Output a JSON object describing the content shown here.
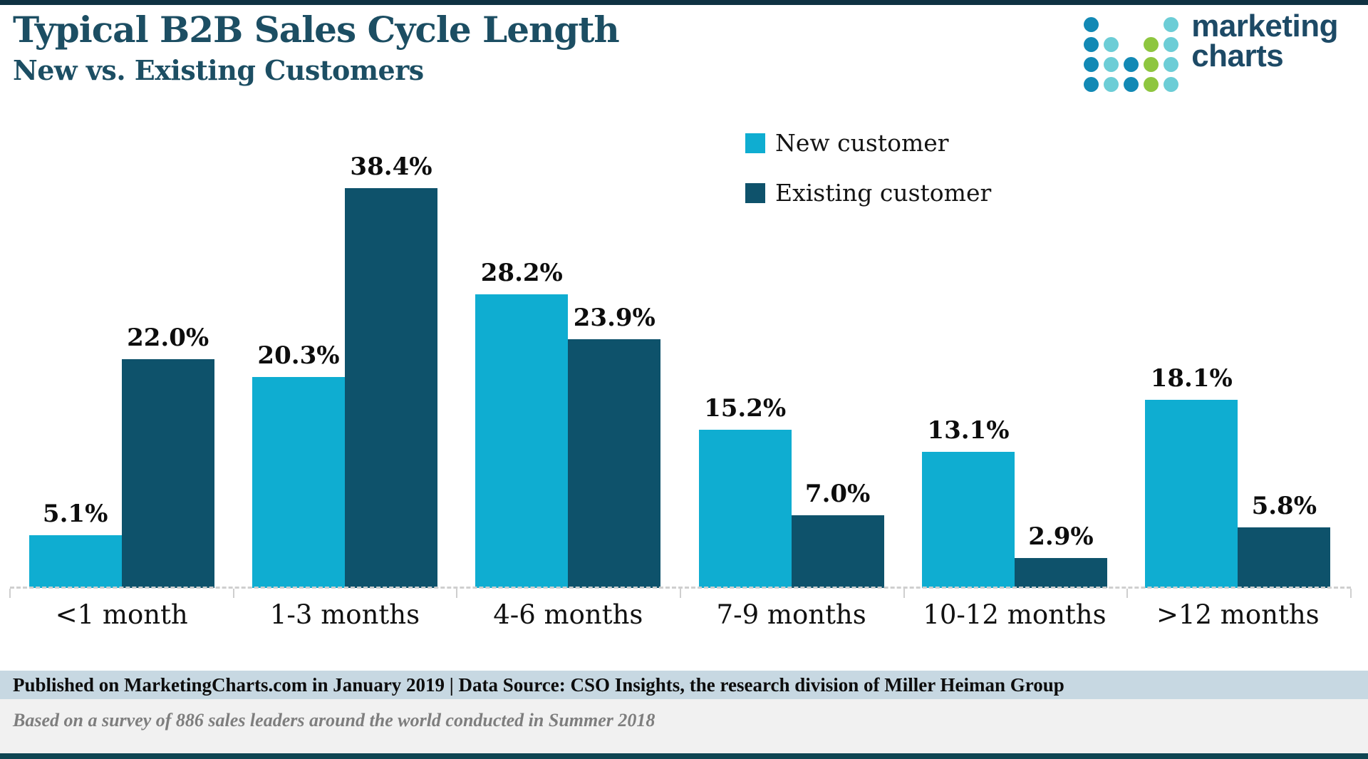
{
  "header": {
    "title": "Typical B2B Sales Cycle Length",
    "subtitle": "New vs. Existing Customers"
  },
  "logo": {
    "line1": "marketing",
    "line2": "charts",
    "dot_colors": {
      "b": "#1289b5",
      "t": "#6ccdd6",
      "g": "#8ec63f"
    },
    "dot_pattern": [
      [
        "b",
        "",
        "",
        "",
        "t"
      ],
      [
        "b",
        "t",
        "",
        "g",
        "t"
      ],
      [
        "b",
        "t",
        "b",
        "g",
        "t"
      ],
      [
        "b",
        "t",
        "b",
        "g",
        "t"
      ]
    ]
  },
  "chart_data": {
    "type": "bar",
    "title": "Typical B2B Sales Cycle Length",
    "subtitle": "New vs. Existing Customers",
    "categories": [
      "<1 month",
      "1-3 months",
      "4-6 months",
      "7-9 months",
      "10-12 months",
      ">12 months"
    ],
    "series": [
      {
        "name": "New customer",
        "color": "#0fadd1",
        "values": [
          5.1,
          20.3,
          28.2,
          15.2,
          13.1,
          18.1
        ]
      },
      {
        "name": "Existing customer",
        "color": "#0e526b",
        "values": [
          22.0,
          38.4,
          23.9,
          7.0,
          2.9,
          5.8
        ]
      }
    ],
    "value_suffix": "%",
    "ylim": [
      0,
      40
    ],
    "grid": false,
    "data_labels": true,
    "legend_position": "top-right",
    "xlabel": "",
    "ylabel": ""
  },
  "colors": {
    "title_text": "#1c4e63",
    "top_border": "#0f3242",
    "bottom_border": "#0f4552",
    "footer_band": "#c7d8e2",
    "footer_background": "#f1f1f1",
    "axis_line": "#cfcfcf"
  },
  "footer": {
    "published_line": "Published on MarketingCharts.com in January 2019 | Data Source: CSO Insights, the research division of Miller Heiman Group",
    "survey_note": "Based on a survey of 886 sales leaders around the world conducted in Summer 2018"
  }
}
